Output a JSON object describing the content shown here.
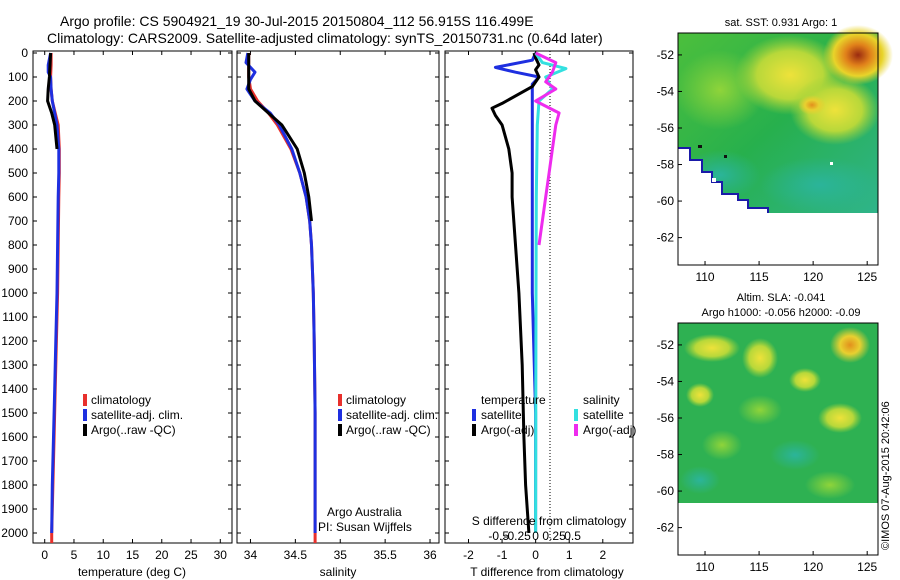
{
  "header": {
    "line1": "Argo profile: CS 5904921_19 30-Jul-2015 20150804_112 56.915S 116.499E",
    "line2": "Climatology: CARS2009. Satellite-adjusted climatology: synTS_20150731.nc (0.64d later)"
  },
  "depth_ticks": [
    "0",
    "100",
    "200",
    "300",
    "400",
    "500",
    "600",
    "700",
    "800",
    "900",
    "1000",
    "1100",
    "1200",
    "1300",
    "1400",
    "1500",
    "1600",
    "1700",
    "1800",
    "1900",
    "2000"
  ],
  "colors": {
    "climatology": "#e8302c",
    "satellite": "#1e2fe0",
    "argo": "#000000",
    "argo_adj_sal": "#ee2bee",
    "satellite_sal": "#33e0e0"
  },
  "chart_data": [
    {
      "type": "line",
      "id": "temperature",
      "xlabel": "temperature (deg C)",
      "xticks": [
        0,
        5,
        10,
        15,
        20,
        25,
        30
      ],
      "xlim": [
        -2,
        32
      ],
      "ylim": [
        0,
        2050
      ],
      "series": [
        {
          "name": "climatology",
          "color": "#e8302c",
          "points": [
            [
              1.1,
              0
            ],
            [
              1.1,
              50
            ],
            [
              1.0,
              100
            ],
            [
              1.1,
              150
            ],
            [
              1.3,
              200
            ],
            [
              1.8,
              250
            ],
            [
              2.3,
              300
            ],
            [
              2.5,
              400
            ],
            [
              2.5,
              500
            ],
            [
              2.4,
              600
            ],
            [
              2.3,
              800
            ],
            [
              2.2,
              1000
            ],
            [
              2.0,
              1200
            ],
            [
              1.8,
              1400
            ],
            [
              1.6,
              1600
            ],
            [
              1.4,
              1800
            ],
            [
              1.2,
              2000
            ],
            [
              1.2,
              2050
            ]
          ]
        },
        {
          "name": "satellite-adj. clim.",
          "color": "#1e2fe0",
          "points": [
            [
              1.0,
              0
            ],
            [
              0.6,
              50
            ],
            [
              0.6,
              80
            ],
            [
              1.0,
              100
            ],
            [
              1.1,
              150
            ],
            [
              1.3,
              200
            ],
            [
              1.7,
              250
            ],
            [
              2.1,
              300
            ],
            [
              2.4,
              400
            ],
            [
              2.4,
              500
            ],
            [
              2.3,
              600
            ],
            [
              2.2,
              800
            ],
            [
              2.1,
              1000
            ],
            [
              1.9,
              1200
            ],
            [
              1.7,
              1400
            ],
            [
              1.5,
              1600
            ],
            [
              1.3,
              1800
            ],
            [
              1.2,
              2000
            ]
          ]
        },
        {
          "name": "Argo(..raw -QC)",
          "color": "#000000",
          "points": [
            [
              1.0,
              0
            ],
            [
              0.9,
              50
            ],
            [
              0.8,
              100
            ],
            [
              0.6,
              150
            ],
            [
              0.5,
              200
            ],
            [
              1.2,
              250
            ],
            [
              1.7,
              300
            ],
            [
              2.1,
              400
            ]
          ]
        }
      ],
      "legend": [
        "climatology",
        "satellite-adj. clim.",
        "Argo(..raw -QC)"
      ]
    },
    {
      "type": "line",
      "id": "salinity",
      "xlabel": "salinity",
      "xticks": [
        34,
        34.5,
        35,
        35.5,
        36
      ],
      "xticklabels": [
        "34",
        "34.5",
        "35",
        "35.5",
        "36"
      ],
      "xlim": [
        33.85,
        36.1
      ],
      "ylim": [
        0,
        2050
      ],
      "series": [
        {
          "name": "climatology",
          "color": "#e8302c",
          "points": [
            [
              33.98,
              0
            ],
            [
              33.98,
              50
            ],
            [
              33.98,
              100
            ],
            [
              34.0,
              150
            ],
            [
              34.08,
              200
            ],
            [
              34.2,
              250
            ],
            [
              34.3,
              300
            ],
            [
              34.45,
              400
            ],
            [
              34.55,
              500
            ],
            [
              34.62,
              600
            ],
            [
              34.66,
              700
            ],
            [
              34.68,
              800
            ],
            [
              34.7,
              1000
            ],
            [
              34.71,
              1200
            ],
            [
              34.72,
              1500
            ],
            [
              34.72,
              2050
            ]
          ]
        },
        {
          "name": "satellite-adj. clim.",
          "color": "#1e2fe0",
          "points": [
            [
              33.97,
              0
            ],
            [
              33.95,
              40
            ],
            [
              34.0,
              60
            ],
            [
              34.05,
              80
            ],
            [
              34.0,
              110
            ],
            [
              33.96,
              150
            ],
            [
              34.05,
              200
            ],
            [
              34.22,
              250
            ],
            [
              34.32,
              300
            ],
            [
              34.46,
              400
            ],
            [
              34.55,
              500
            ],
            [
              34.62,
              600
            ],
            [
              34.66,
              700
            ],
            [
              34.68,
              800
            ],
            [
              34.7,
              1000
            ],
            [
              34.71,
              1200
            ],
            [
              34.72,
              1500
            ],
            [
              34.72,
              2000
            ]
          ]
        },
        {
          "name": "Argo(..raw -QC)",
          "color": "#000000",
          "points": [
            [
              33.98,
              0
            ],
            [
              33.98,
              50
            ],
            [
              33.98,
              100
            ],
            [
              33.98,
              150
            ],
            [
              34.05,
              200
            ],
            [
              34.2,
              250
            ],
            [
              34.35,
              300
            ],
            [
              34.52,
              400
            ],
            [
              34.6,
              500
            ],
            [
              34.65,
              600
            ],
            [
              34.68,
              700
            ]
          ]
        }
      ],
      "legend": [
        "climatology",
        "satellite-adj. clim.",
        "Argo(..raw -QC)"
      ],
      "annotation": [
        "Argo Australia",
        "PI: Susan Wijffels"
      ]
    },
    {
      "type": "line",
      "id": "difference",
      "xlabel": "T difference from climatology",
      "xticks": [
        -2,
        -1,
        0,
        1,
        2
      ],
      "xlim": [
        -2.7,
        2.9
      ],
      "top_label": "S difference from climatology",
      "top_ticks": [
        "-0.5",
        "-0.25",
        "0",
        "0.25",
        "0.5"
      ],
      "ylim": [
        0,
        2050
      ],
      "series": [
        {
          "name": "temperature satellite",
          "color": "#1e2fe0",
          "points": [
            [
              0,
              0
            ],
            [
              -0.1,
              30
            ],
            [
              -1.2,
              60
            ],
            [
              -0.6,
              80
            ],
            [
              0.1,
              100
            ],
            [
              -0.1,
              130
            ],
            [
              -0.1,
              150
            ],
            [
              -0.1,
              200
            ],
            [
              -0.1,
              300
            ],
            [
              -0.1,
              500
            ],
            [
              -0.1,
              800
            ],
            [
              -0.1,
              1000
            ],
            [
              0,
              1500
            ],
            [
              0,
              2000
            ]
          ]
        },
        {
          "name": "temperature Argo(-adj)",
          "color": "#000000",
          "points": [
            [
              -0.05,
              0
            ],
            [
              0,
              20
            ],
            [
              0.1,
              50
            ],
            [
              0,
              70
            ],
            [
              0.1,
              100
            ],
            [
              -0.1,
              140
            ],
            [
              -1.0,
              210
            ],
            [
              -1.3,
              230
            ],
            [
              -1.2,
              260
            ],
            [
              -1.0,
              300
            ],
            [
              -0.8,
              400
            ],
            [
              -0.7,
              500
            ],
            [
              -0.7,
              600
            ],
            [
              -0.6,
              800
            ],
            [
              -0.5,
              1000
            ],
            [
              -0.4,
              1300
            ],
            [
              -0.35,
              1600
            ],
            [
              -0.3,
              1800
            ],
            [
              -0.2,
              2000
            ]
          ]
        },
        {
          "name": "salinity satellite",
          "color": "#33e0e0",
          "points": [
            [
              0,
              0
            ],
            [
              0.2,
              40
            ],
            [
              0.9,
              65
            ],
            [
              0.3,
              100
            ],
            [
              0.5,
              150
            ],
            [
              0.1,
              200
            ],
            [
              0.05,
              300
            ],
            [
              0.02,
              600
            ],
            [
              0.01,
              1000
            ],
            [
              0,
              2000
            ]
          ]
        },
        {
          "name": "salinity Argo(-adj)",
          "color": "#ee2bee",
          "points": [
            [
              0,
              0
            ],
            [
              0.6,
              40
            ],
            [
              0.5,
              80
            ],
            [
              0.3,
              120
            ],
            [
              0.6,
              150
            ],
            [
              0.0,
              200
            ],
            [
              0.7,
              250
            ],
            [
              0.6,
              300
            ],
            [
              0.5,
              400
            ],
            [
              0.4,
              500
            ],
            [
              0.3,
              600
            ],
            [
              0.1,
              800
            ]
          ]
        }
      ],
      "legend_temperature_title": "temperature",
      "legend_salinity_title": "salinity",
      "legend_temperature": [
        "satellite",
        "Argo(-adj)"
      ],
      "legend_salinity": [
        "satellite",
        "Argo(-adj)"
      ]
    },
    {
      "type": "heatmap",
      "id": "sst_map",
      "title": "sat. SST: 0.931 Argo: 1",
      "xticks": [
        110,
        115,
        120,
        125
      ],
      "yticks": [
        -52,
        -54,
        -56,
        -58,
        -60,
        -62
      ],
      "xlim": [
        107.5,
        126
      ],
      "ylim": [
        -63.5,
        -50.8
      ]
    },
    {
      "type": "heatmap",
      "id": "sla_map",
      "title_line1": "Altim. SLA: -0.041",
      "title_line2": "Argo h1000: -0.056 h2000: -0.09",
      "xticks": [
        110,
        115,
        120,
        125
      ],
      "yticks": [
        -52,
        -54,
        -56,
        -58,
        -60,
        -62
      ],
      "xlim": [
        107.5,
        126
      ],
      "ylim": [
        -63.5,
        -50.8
      ]
    }
  ],
  "watermark": "©IMOS 07-Aug-2015 20:42:06"
}
